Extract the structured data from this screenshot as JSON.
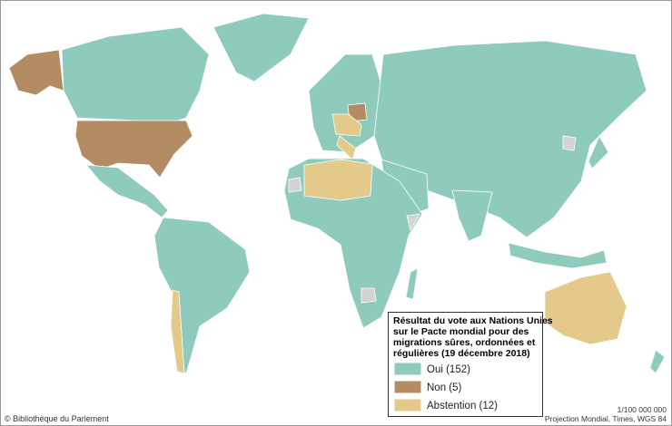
{
  "legend": {
    "title_lines": [
      "Résultat du vote aux Nations Unies",
      "sur le Pacte mondial pour des",
      "migrations sûres, ordonnées et",
      "régulières (19 décembre 2018)"
    ],
    "items": [
      {
        "label": "Oui (152)",
        "color": "#8fcbbd"
      },
      {
        "label": "Non (5)",
        "color": "#b48c64"
      },
      {
        "label": "Abstention (12)",
        "color": "#e3c98a"
      }
    ]
  },
  "footer": {
    "credit": "© Bibliothèque du Parlement",
    "scale": "1/100 000 000",
    "projection": "Projection Mondial, Times, WGS 84"
  }
}
